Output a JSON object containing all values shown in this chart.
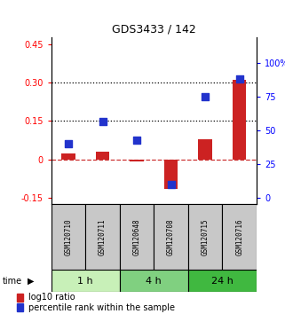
{
  "title": "GDS3433 / 142",
  "samples": [
    "GSM120710",
    "GSM120711",
    "GSM120648",
    "GSM120708",
    "GSM120715",
    "GSM120716"
  ],
  "groups": [
    {
      "label": "1 h",
      "span": [
        0,
        2
      ],
      "color": "#c8f0b8"
    },
    {
      "label": "4 h",
      "span": [
        2,
        4
      ],
      "color": "#80d080"
    },
    {
      "label": "24 h",
      "span": [
        4,
        6
      ],
      "color": "#40b840"
    }
  ],
  "log10_ratio": [
    0.022,
    0.03,
    -0.008,
    -0.115,
    0.078,
    0.31
  ],
  "percentile_rank": [
    40,
    57,
    43,
    10,
    75,
    88
  ],
  "ylim_left": [
    -0.175,
    0.475
  ],
  "ylim_right": [
    -4.375,
    118.75
  ],
  "yticks_left": [
    -0.15,
    0.0,
    0.15,
    0.3,
    0.45
  ],
  "yticks_right": [
    0,
    25,
    50,
    75,
    100
  ],
  "bar_color": "#cc2222",
  "square_color": "#2233cc",
  "dashed_zero_color": "#cc3333",
  "left_ytick_labels": [
    "-0.15",
    "0",
    "0.15",
    "0.30",
    "0.45"
  ],
  "right_ytick_labels": [
    "0",
    "25",
    "50",
    "75",
    "100%"
  ],
  "legend_bar_label": "log10 ratio",
  "legend_sq_label": "percentile rank within the sample"
}
